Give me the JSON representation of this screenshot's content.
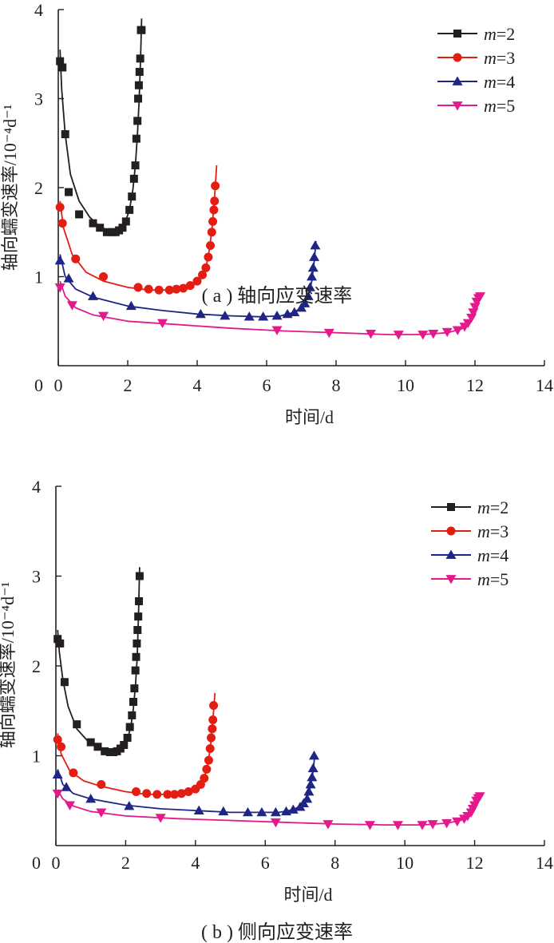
{
  "chart_data": [
    {
      "type": "line",
      "caption": "( a ) 轴向应变速率",
      "xlabel": "时间/d",
      "ylabel": "轴向蠕变速率/10⁻⁴d⁻¹",
      "xlim": [
        0,
        14
      ],
      "ylim": [
        0,
        4
      ],
      "xticks": [
        "0",
        "2",
        "4",
        "6",
        "8",
        "10",
        "12",
        "14"
      ],
      "yticks": [
        "1",
        "2",
        "3",
        "4"
      ],
      "legend_position": "top-right",
      "series": [
        {
          "name": "m=2",
          "var": "m",
          "eq": "=2",
          "color": "#231f20",
          "marker": "square",
          "x": [
            0.05,
            0.12,
            0.2,
            0.3,
            0.6,
            1.0,
            1.2,
            1.4,
            1.55,
            1.65,
            1.75,
            1.85,
            1.95,
            2.05,
            2.12,
            2.18,
            2.22,
            2.25,
            2.28,
            2.3,
            2.32,
            2.34,
            2.36,
            2.38,
            2.4
          ],
          "y": [
            3.42,
            3.35,
            2.6,
            1.95,
            1.7,
            1.6,
            1.55,
            1.5,
            1.5,
            1.5,
            1.52,
            1.55,
            1.62,
            1.75,
            1.9,
            2.1,
            2.25,
            2.55,
            2.75,
            3.0,
            3.15,
            3.3,
            3.45,
            3.77,
            3.77
          ],
          "line_x": [
            0.05,
            0.1,
            0.2,
            0.35,
            0.6,
            0.9,
            1.2,
            1.5,
            1.7,
            1.9,
            2.05,
            2.15,
            2.22,
            2.28,
            2.33,
            2.37,
            2.4
          ],
          "line_y": [
            3.55,
            3.1,
            2.6,
            2.15,
            1.85,
            1.67,
            1.56,
            1.51,
            1.5,
            1.58,
            1.75,
            1.98,
            2.25,
            2.6,
            3.0,
            3.45,
            3.9
          ]
        },
        {
          "name": "m=3",
          "var": "m",
          "eq": "=3",
          "color": "#e41d13",
          "marker": "circle",
          "x": [
            0.05,
            0.12,
            0.5,
            1.3,
            2.3,
            2.6,
            2.9,
            3.2,
            3.4,
            3.6,
            3.8,
            4.0,
            4.15,
            4.25,
            4.32,
            4.38,
            4.42,
            4.45,
            4.48,
            4.5,
            4.52
          ],
          "y": [
            1.78,
            1.6,
            1.2,
            1.0,
            0.88,
            0.86,
            0.85,
            0.85,
            0.86,
            0.87,
            0.9,
            0.95,
            1.02,
            1.1,
            1.22,
            1.35,
            1.5,
            1.62,
            1.75,
            1.85,
            2.02
          ],
          "line_x": [
            0.05,
            0.15,
            0.4,
            0.8,
            1.3,
            2.0,
            2.6,
            3.2,
            3.6,
            3.9,
            4.1,
            4.25,
            4.35,
            4.43,
            4.5,
            4.56
          ],
          "line_y": [
            1.85,
            1.55,
            1.25,
            1.05,
            0.95,
            0.88,
            0.85,
            0.85,
            0.87,
            0.92,
            0.99,
            1.1,
            1.3,
            1.55,
            1.9,
            2.25
          ]
        },
        {
          "name": "m=4",
          "var": "m",
          "eq": "=4",
          "color": "#1f2585",
          "marker": "triangle-up",
          "x": [
            0.05,
            0.3,
            1.0,
            2.1,
            4.1,
            4.8,
            5.5,
            5.9,
            6.3,
            6.6,
            6.8,
            7.0,
            7.1,
            7.2,
            7.25,
            7.3,
            7.34,
            7.37,
            7.4
          ],
          "y": [
            1.18,
            0.98,
            0.78,
            0.67,
            0.58,
            0.56,
            0.55,
            0.55,
            0.56,
            0.58,
            0.6,
            0.65,
            0.7,
            0.78,
            0.88,
            1.0,
            1.1,
            1.22,
            1.35
          ],
          "line_x": [
            0.05,
            0.2,
            0.5,
            1.0,
            2.0,
            3.0,
            4.0,
            5.0,
            5.8,
            6.4,
            6.8,
            7.05,
            7.2,
            7.3,
            7.38,
            7.42
          ],
          "line_y": [
            1.25,
            1.0,
            0.86,
            0.77,
            0.67,
            0.62,
            0.58,
            0.56,
            0.55,
            0.56,
            0.6,
            0.67,
            0.78,
            0.95,
            1.2,
            1.4
          ]
        },
        {
          "name": "m=5",
          "var": "m",
          "eq": "=5",
          "color": "#e4198b",
          "marker": "triangle-down",
          "x": [
            0.05,
            0.4,
            1.3,
            3.0,
            6.3,
            7.8,
            9.0,
            9.8,
            10.5,
            10.8,
            11.2,
            11.5,
            11.7,
            11.8,
            11.9,
            11.95,
            12.0,
            12.05,
            12.1,
            12.15
          ],
          "y": [
            0.88,
            0.68,
            0.56,
            0.48,
            0.4,
            0.37,
            0.36,
            0.35,
            0.35,
            0.36,
            0.38,
            0.4,
            0.44,
            0.48,
            0.54,
            0.6,
            0.66,
            0.72,
            0.76,
            0.78
          ],
          "line_x": [
            0.05,
            0.2,
            0.5,
            1.0,
            2.0,
            3.5,
            5.0,
            6.5,
            8.0,
            9.5,
            10.5,
            11.2,
            11.6,
            11.85,
            12.0,
            12.12,
            12.2
          ],
          "line_y": [
            0.95,
            0.78,
            0.65,
            0.57,
            0.5,
            0.46,
            0.42,
            0.39,
            0.37,
            0.35,
            0.35,
            0.37,
            0.41,
            0.48,
            0.58,
            0.72,
            0.82
          ]
        }
      ]
    },
    {
      "type": "line",
      "caption": "( b ) 侧向应变速率",
      "xlabel": "时间/d",
      "ylabel": "轴向蠕变速率/10⁻⁴d⁻¹",
      "xlim": [
        0,
        14
      ],
      "ylim": [
        0,
        4
      ],
      "xticks": [
        "0",
        "2",
        "4",
        "6",
        "8",
        "10",
        "12",
        "14"
      ],
      "yticks": [
        "1",
        "2",
        "3",
        "4"
      ],
      "legend_position": "top-right",
      "series": [
        {
          "name": "m=2",
          "var": "m",
          "eq": "=2",
          "color": "#231f20",
          "marker": "square",
          "x": [
            0.05,
            0.12,
            0.25,
            0.6,
            1.0,
            1.2,
            1.4,
            1.55,
            1.65,
            1.75,
            1.85,
            1.95,
            2.05,
            2.12,
            2.18,
            2.22,
            2.25,
            2.28,
            2.3,
            2.32,
            2.34,
            2.36,
            2.38,
            2.4
          ],
          "y": [
            2.3,
            2.25,
            1.82,
            1.35,
            1.15,
            1.1,
            1.05,
            1.04,
            1.04,
            1.05,
            1.08,
            1.12,
            1.2,
            1.32,
            1.45,
            1.6,
            1.75,
            1.95,
            2.1,
            2.25,
            2.4,
            2.55,
            2.72,
            3.0
          ],
          "line_x": [
            0.05,
            0.1,
            0.2,
            0.35,
            0.6,
            0.9,
            1.2,
            1.5,
            1.7,
            1.9,
            2.05,
            2.15,
            2.22,
            2.28,
            2.33,
            2.37,
            2.4
          ],
          "line_y": [
            2.4,
            2.15,
            1.85,
            1.55,
            1.3,
            1.17,
            1.1,
            1.05,
            1.04,
            1.08,
            1.18,
            1.33,
            1.52,
            1.78,
            2.1,
            2.6,
            3.1
          ]
        },
        {
          "name": "m=3",
          "var": "m",
          "eq": "=3",
          "color": "#e41d13",
          "marker": "circle",
          "x": [
            0.05,
            0.15,
            0.5,
            1.3,
            2.3,
            2.6,
            2.9,
            3.2,
            3.4,
            3.6,
            3.8,
            4.0,
            4.15,
            4.25,
            4.32,
            4.38,
            4.42,
            4.45,
            4.48,
            4.5,
            4.52
          ],
          "y": [
            1.18,
            1.1,
            0.81,
            0.68,
            0.6,
            0.58,
            0.57,
            0.57,
            0.57,
            0.58,
            0.6,
            0.63,
            0.68,
            0.75,
            0.85,
            0.95,
            1.08,
            1.2,
            1.3,
            1.4,
            1.56
          ],
          "line_x": [
            0.05,
            0.15,
            0.4,
            0.8,
            1.3,
            2.0,
            2.6,
            3.2,
            3.6,
            3.9,
            4.1,
            4.25,
            4.35,
            4.43,
            4.5,
            4.56
          ],
          "line_y": [
            1.25,
            1.02,
            0.83,
            0.72,
            0.66,
            0.6,
            0.57,
            0.57,
            0.58,
            0.62,
            0.67,
            0.75,
            0.9,
            1.1,
            1.4,
            1.7
          ]
        },
        {
          "name": "m=4",
          "var": "m",
          "eq": "=4",
          "color": "#1f2585",
          "marker": "triangle-up",
          "x": [
            0.05,
            0.3,
            1.0,
            2.1,
            4.1,
            4.8,
            5.5,
            5.9,
            6.3,
            6.6,
            6.8,
            7.0,
            7.1,
            7.2,
            7.25,
            7.3,
            7.34,
            7.37,
            7.4
          ],
          "y": [
            0.79,
            0.65,
            0.52,
            0.44,
            0.39,
            0.38,
            0.37,
            0.37,
            0.37,
            0.38,
            0.4,
            0.43,
            0.47,
            0.52,
            0.6,
            0.68,
            0.76,
            0.86,
            1.0
          ],
          "line_x": [
            0.05,
            0.2,
            0.5,
            1.0,
            2.0,
            3.0,
            4.0,
            5.0,
            5.8,
            6.4,
            6.8,
            7.05,
            7.2,
            7.3,
            7.38,
            7.42
          ],
          "line_y": [
            0.85,
            0.68,
            0.58,
            0.52,
            0.45,
            0.41,
            0.39,
            0.37,
            0.37,
            0.37,
            0.4,
            0.45,
            0.53,
            0.66,
            0.85,
            1.02
          ]
        },
        {
          "name": "m=5",
          "var": "m",
          "eq": "=5",
          "color": "#e4198b",
          "marker": "triangle-down",
          "x": [
            0.05,
            0.4,
            1.3,
            3.0,
            6.3,
            7.8,
            9.0,
            9.8,
            10.5,
            10.8,
            11.2,
            11.5,
            11.7,
            11.8,
            11.9,
            11.95,
            12.0,
            12.05,
            12.1,
            12.15
          ],
          "y": [
            0.58,
            0.45,
            0.37,
            0.31,
            0.26,
            0.24,
            0.23,
            0.23,
            0.23,
            0.24,
            0.25,
            0.27,
            0.3,
            0.33,
            0.37,
            0.41,
            0.45,
            0.5,
            0.53,
            0.55
          ],
          "line_x": [
            0.05,
            0.2,
            0.5,
            1.0,
            2.0,
            3.5,
            5.0,
            6.5,
            8.0,
            9.5,
            10.5,
            11.2,
            11.6,
            11.85,
            12.0,
            12.12,
            12.2
          ],
          "line_y": [
            0.62,
            0.52,
            0.44,
            0.38,
            0.33,
            0.3,
            0.28,
            0.26,
            0.24,
            0.23,
            0.23,
            0.25,
            0.28,
            0.33,
            0.4,
            0.5,
            0.58
          ]
        }
      ]
    }
  ]
}
